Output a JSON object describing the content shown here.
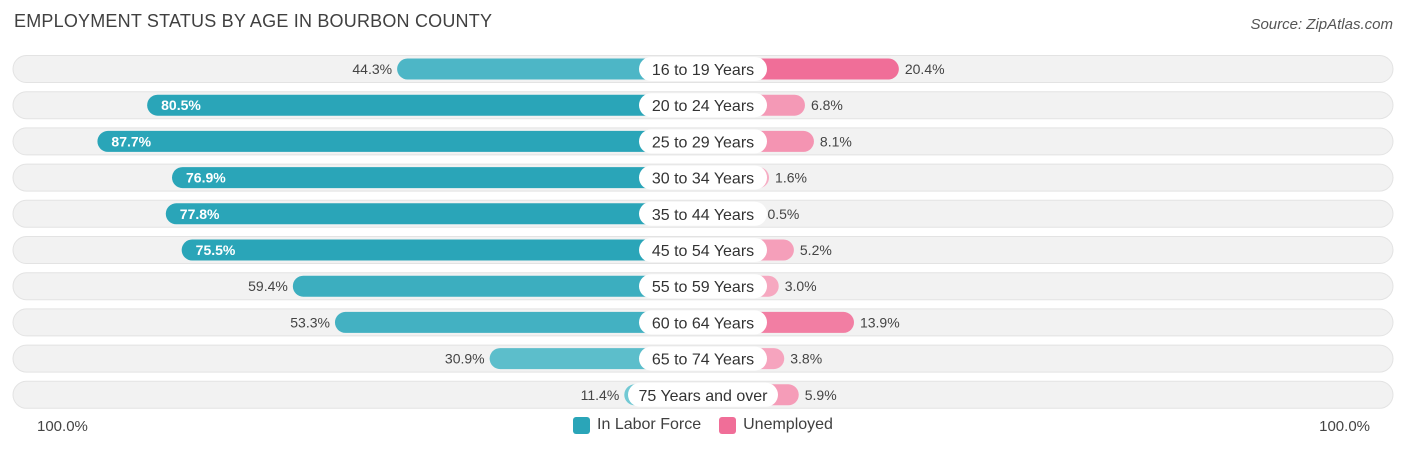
{
  "header": {
    "title": "EMPLOYMENT STATUS BY AGE IN BOURBON COUNTY",
    "source": "Source: ZipAtlas.com"
  },
  "axis": {
    "left_label": "100.0%",
    "right_label": "100.0%"
  },
  "legend": {
    "labor": {
      "label": "In Labor Force",
      "color": "#2aa5b8"
    },
    "unemployed": {
      "label": "Unemployed",
      "color": "#f06e98"
    }
  },
  "chart_data": {
    "type": "bar",
    "title": "EMPLOYMENT STATUS BY AGE IN BOURBON COUNTY",
    "orientation": "horizontal-diverging",
    "xlim": [
      -100,
      100
    ],
    "categories": [
      "16 to 19 Years",
      "20 to 24 Years",
      "25 to 29 Years",
      "30 to 34 Years",
      "35 to 44 Years",
      "45 to 54 Years",
      "55 to 59 Years",
      "60 to 64 Years",
      "65 to 74 Years",
      "75 Years and over"
    ],
    "series": [
      {
        "name": "In Labor Force",
        "side": "left",
        "values": [
          44.3,
          80.5,
          87.7,
          76.9,
          77.8,
          75.5,
          59.4,
          53.3,
          30.9,
          11.4
        ]
      },
      {
        "name": "Unemployed",
        "side": "right",
        "values": [
          20.4,
          6.8,
          8.1,
          1.6,
          0.5,
          5.2,
          3.0,
          13.9,
          3.8,
          5.9
        ]
      }
    ],
    "value_labels": {
      "In Labor Force": [
        "44.3%",
        "80.5%",
        "87.7%",
        "76.9%",
        "77.8%",
        "75.5%",
        "59.4%",
        "53.3%",
        "30.9%",
        "11.4%"
      ],
      "Unemployed": [
        "20.4%",
        "6.8%",
        "8.1%",
        "1.6%",
        "0.5%",
        "5.2%",
        "3.0%",
        "13.9%",
        "3.8%",
        "5.9%"
      ]
    },
    "legend_position": "bottom-center"
  }
}
